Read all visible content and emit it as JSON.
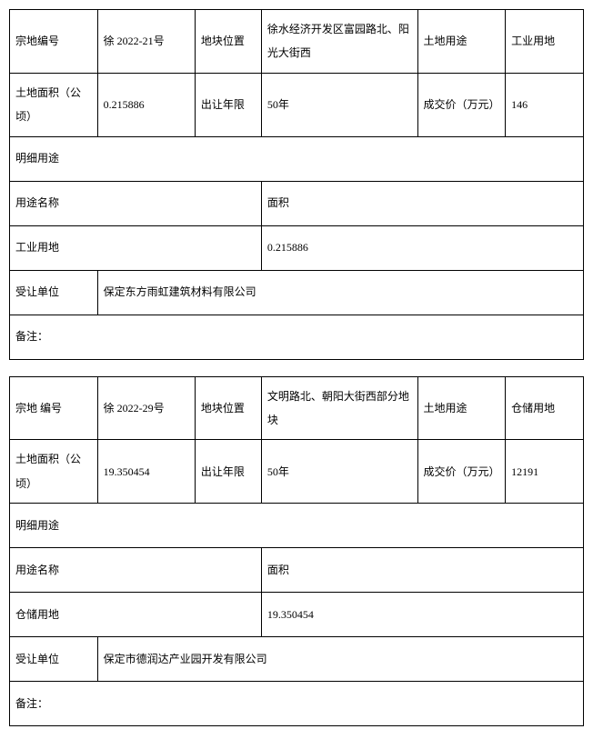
{
  "blocks": [
    {
      "row1": {
        "label_parcel_id": "宗地编号",
        "parcel_id": "徐 2022-21号",
        "label_location": "地块位置",
        "location": "徐水经济开发区富园路北、阳光大街西",
        "label_landuse": "土地用途",
        "landuse": "工业用地"
      },
      "row2": {
        "label_area": "土地面积（公顷）",
        "area": "0.215886",
        "label_term": "出让年限",
        "term": "50年",
        "label_price": "成交价（万元）",
        "price": "146"
      },
      "detail_header": "明细用途",
      "detail_cols": {
        "name": "用途名称",
        "area": "面积"
      },
      "detail_row": {
        "name": "工业用地",
        "area": "0.215886"
      },
      "assignee_label": "受让单位",
      "assignee": "保定东方雨虹建筑材料有限公司",
      "remark_label": "备注："
    },
    {
      "row1": {
        "label_parcel_id": "宗地 编号",
        "parcel_id": "徐 2022-29号",
        "label_location": "地块位置",
        "location": "文明路北、朝阳大街西部分地块",
        "label_landuse": "土地用途",
        "landuse": "仓储用地"
      },
      "row2": {
        "label_area": "土地面积（公顷）",
        "area": "19.350454",
        "label_term": "出让年限",
        "term": "50年",
        "label_price": "成交价（万元）",
        "price": "12191"
      },
      "detail_header": "明细用途",
      "detail_cols": {
        "name": "用途名称",
        "area": "面积"
      },
      "detail_row": {
        "name": "仓储用地",
        "area": "19.350454"
      },
      "assignee_label": "受让单位",
      "assignee": "保定市德润达产业园开发有限公司",
      "remark_label": "备注："
    }
  ]
}
